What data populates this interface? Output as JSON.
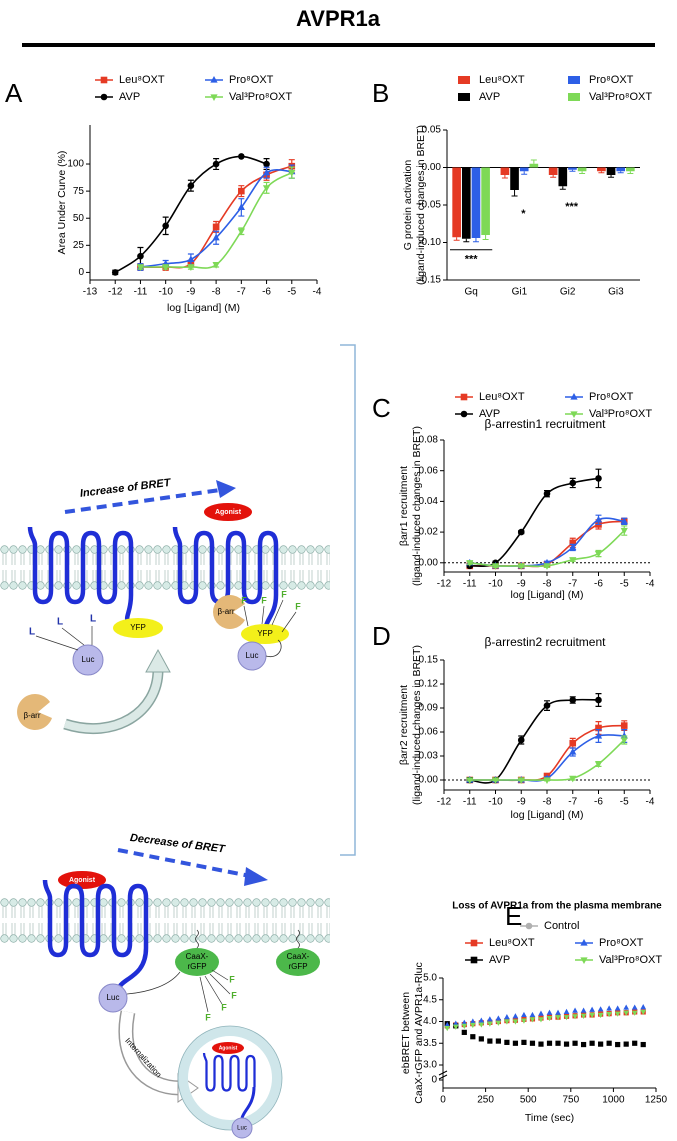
{
  "title": "AVPR1a",
  "chart_data": [
    {
      "panel": "A",
      "type": "line",
      "curve": "smooth",
      "xlabel": "log [Ligand] (M)",
      "ylabel": [
        "Area Under Curve (%)"
      ],
      "x": [
        -12,
        -11,
        -10,
        -9,
        -8,
        -7,
        -6,
        -5
      ],
      "xlim": [
        -13,
        -4
      ],
      "xticks": [
        -13,
        -12,
        -11,
        -10,
        -9,
        -8,
        -7,
        -6,
        -5,
        -4
      ],
      "ylim": [
        -7,
        136
      ],
      "yticks": [
        0,
        25,
        50,
        75,
        100
      ],
      "series": [
        {
          "name": "Leu⁸OXT",
          "color": "#e53a24",
          "marker": "square",
          "values": [
            null,
            5,
            5,
            8,
            42,
            75,
            90,
            98
          ],
          "errors": [
            null,
            3,
            3,
            3,
            5,
            5,
            5,
            6
          ]
        },
        {
          "name": "AVP",
          "color": "#000000",
          "marker": "circle",
          "values": [
            0,
            15,
            43,
            80,
            100,
            107,
            100,
            null
          ],
          "errors": [
            2,
            8,
            8,
            5,
            5,
            0,
            5,
            null
          ]
        },
        {
          "name": "Pro⁸OXT",
          "color": "#2d5fe6",
          "marker": "triangle",
          "values": [
            null,
            5,
            8,
            12,
            32,
            60,
            92,
            93
          ],
          "errors": [
            null,
            3,
            3,
            5,
            6,
            8,
            5,
            6
          ]
        },
        {
          "name": "Val³Pro⁸OXT",
          "color": "#7ed957",
          "marker": "triangle-down",
          "values": [
            null,
            5,
            5,
            5,
            7,
            38,
            78,
            92
          ],
          "errors": [
            null,
            2,
            2,
            2,
            2,
            3,
            5,
            5
          ]
        }
      ]
    },
    {
      "panel": "B",
      "type": "bar",
      "ylabel": [
        "G protein activation",
        "(ligand-induced changes in BRET)"
      ],
      "categories": [
        "Gq",
        "Gi1",
        "Gi2",
        "Gi3"
      ],
      "ylim": [
        -0.15,
        0.05
      ],
      "yticks": [
        {
          "value": 0.05,
          "label": "0.05"
        },
        {
          "value": 0,
          "label": "0.00"
        },
        {
          "value": -0.05,
          "label": "-0.05"
        },
        {
          "value": -0.1,
          "label": "-0.10"
        },
        {
          "value": -0.15,
          "label": "-0.15"
        }
      ],
      "series": [
        {
          "name": "Leu⁸OXT",
          "color": "#e53a24",
          "values": [
            -0.093,
            -0.01,
            -0.01,
            -0.005
          ],
          "errors": [
            0.004,
            0.004,
            0.003,
            0.002
          ]
        },
        {
          "name": "AVP",
          "color": "#000000",
          "values": [
            -0.095,
            -0.03,
            -0.025,
            -0.01
          ],
          "errors": [
            0.004,
            0.008,
            0.004,
            0.003
          ]
        },
        {
          "name": "Pro⁸OXT",
          "color": "#2d5fe6",
          "values": [
            -0.094,
            -0.005,
            -0.003,
            -0.005
          ],
          "errors": [
            0.005,
            0.004,
            0.002,
            0.002
          ]
        },
        {
          "name": "Val³Pro⁸OXT",
          "color": "#7ed957",
          "values": [
            -0.09,
            0.005,
            -0.005,
            -0.005
          ],
          "errors": [
            0.006,
            0.005,
            0.003,
            0.003
          ]
        }
      ],
      "annotations": [
        {
          "text": "***",
          "category": 0
        },
        {
          "text": "*",
          "category": 1
        },
        {
          "text": "***",
          "category": 2
        }
      ]
    },
    {
      "panel": "C",
      "type": "line",
      "curve": "smooth",
      "title": "β-arrestin1 recruitment",
      "xlabel": "log [Ligand] (M)",
      "ylabel": [
        "βarr1 recruitment",
        "(ligand-induced changes in BRET)"
      ],
      "zero_line": true,
      "x": [
        -11,
        -10,
        -9,
        -8,
        -7,
        -6,
        -5
      ],
      "xlim": [
        -12,
        -4
      ],
      "xticks": [
        -12,
        -11,
        -10,
        -9,
        -8,
        -7,
        -6,
        -5,
        -4
      ],
      "ylim": [
        -0.006,
        0.08
      ],
      "yticks": [
        {
          "value": 0,
          "label": "0.00"
        },
        {
          "value": 0.02,
          "label": "0.02"
        },
        {
          "value": 0.04,
          "label": "0.04"
        },
        {
          "value": 0.06,
          "label": "0.06"
        },
        {
          "value": 0.08,
          "label": "0.08"
        }
      ],
      "series": [
        {
          "name": "Leu⁸OXT",
          "color": "#e53a24",
          "marker": "square",
          "values": [
            -0.002,
            -0.002,
            -0.002,
            -0.001,
            0.013,
            0.025,
            0.027
          ],
          "errors": [
            0.001,
            0.001,
            0.001,
            0.001,
            0.003,
            0.003,
            0.002
          ]
        },
        {
          "name": "AVP",
          "color": "#000000",
          "marker": "circle",
          "values": [
            -0.002,
            0,
            0.02,
            0.045,
            0.052,
            0.055,
            null
          ],
          "errors": [
            0.001,
            0.001,
            0.001,
            0.002,
            0.003,
            0.006,
            null
          ]
        },
        {
          "name": "Pro⁸OXT",
          "color": "#2d5fe6",
          "marker": "triangle",
          "values": [
            0,
            -0.002,
            -0.002,
            0,
            0.01,
            0.028,
            0.027
          ],
          "errors": [
            0.001,
            0.001,
            0.001,
            0.001,
            0.002,
            0.003,
            0.002
          ]
        },
        {
          "name": "Val³Pro⁸OXT",
          "color": "#7ed957",
          "marker": "triangle-down",
          "values": [
            0,
            -0.002,
            -0.002,
            -0.002,
            0.002,
            0.006,
            0.021
          ],
          "errors": [
            0.001,
            0.001,
            0.001,
            0.001,
            0.001,
            0.002,
            0.003
          ]
        }
      ]
    },
    {
      "panel": "D",
      "type": "line",
      "curve": "smooth",
      "title": "β-arrestin2 recruitment",
      "xlabel": "log [Ligand] (M)",
      "ylabel": [
        "βarr2 recruitment",
        "(ligand-induced changes in BRET)"
      ],
      "zero_line": true,
      "legend": false,
      "x": [
        -11,
        -10,
        -9,
        -8,
        -7,
        -6,
        -5
      ],
      "xlim": [
        -12,
        -4
      ],
      "xticks": [
        -12,
        -11,
        -10,
        -9,
        -8,
        -7,
        -6,
        -5,
        -4
      ],
      "ylim": [
        -0.0125,
        0.15
      ],
      "yticks": [
        {
          "value": 0,
          "label": "0.00"
        },
        {
          "value": 0.03,
          "label": "0.03"
        },
        {
          "value": 0.06,
          "label": "0.06"
        },
        {
          "value": 0.09,
          "label": "0.09"
        },
        {
          "value": 0.12,
          "label": "0.12"
        },
        {
          "value": 0.15,
          "label": "0.15"
        }
      ],
      "series": [
        {
          "name": "Leu⁸OXT",
          "color": "#e53a24",
          "marker": "square",
          "values": [
            0,
            0,
            0,
            0.005,
            0.046,
            0.065,
            0.068
          ],
          "errors": [
            0.002,
            0.002,
            0.002,
            0.002,
            0.006,
            0.008,
            0.006
          ]
        },
        {
          "name": "AVP",
          "color": "#000000",
          "marker": "circle",
          "values": [
            0,
            0,
            0.05,
            0.093,
            0.1,
            0.1,
            null
          ],
          "errors": [
            0.003,
            0.002,
            0.005,
            0.006,
            0.004,
            0.008,
            null
          ]
        },
        {
          "name": "Pro⁸OXT",
          "color": "#2d5fe6",
          "marker": "triangle",
          "values": [
            0,
            0,
            0,
            0.002,
            0.035,
            0.055,
            0.055
          ],
          "errors": [
            0.002,
            0.002,
            0.002,
            0.002,
            0.005,
            0.008,
            0.008
          ]
        },
        {
          "name": "Val³Pro⁸OXT",
          "color": "#7ed957",
          "marker": "triangle-down",
          "values": [
            0,
            0,
            0,
            0,
            0.002,
            0.02,
            0.05
          ],
          "errors": [
            0.001,
            0.001,
            0.001,
            0.001,
            0.002,
            0.003,
            0.005
          ]
        }
      ]
    },
    {
      "panel": "E",
      "type": "scatter",
      "title": "Loss of AVPR1a from the plasma membrane",
      "xlabel": "Time (sec)",
      "ylabel": [
        "ebBRET between",
        "CaaX-rGFP and AVPR1a-Rluc"
      ],
      "x": [
        25,
        75,
        125,
        175,
        225,
        275,
        325,
        375,
        425,
        475,
        525,
        575,
        625,
        675,
        725,
        775,
        825,
        875,
        925,
        975,
        1025,
        1075,
        1125,
        1175
      ],
      "xlim": [
        0,
        1250
      ],
      "xticks": [
        0,
        250,
        500,
        750,
        1000,
        1250
      ],
      "ylim": [
        3,
        5
      ],
      "yticks": [
        {
          "value": 3,
          "label": "3.0"
        },
        {
          "value": 3.5,
          "label": "3.5"
        },
        {
          "value": 4,
          "label": "4.0"
        },
        {
          "value": 4.5,
          "label": "4.5"
        },
        {
          "value": 5,
          "label": "5.0"
        }
      ],
      "y_break_tick": 0,
      "series": [
        {
          "name": "Control",
          "color": "#b0b0b0",
          "marker": "circle",
          "values": [
            3.88,
            3.9,
            3.92,
            3.95,
            3.97,
            4.0,
            4.0,
            4.02,
            4.05,
            4.05,
            4.08,
            4.1,
            4.1,
            4.12,
            4.12,
            4.15,
            4.15,
            4.18,
            4.2,
            4.2,
            4.22,
            4.22,
            4.25,
            4.25
          ]
        },
        {
          "name": "Leu⁸OXT",
          "color": "#e53a24",
          "marker": "square",
          "values": [
            3.9,
            3.92,
            3.93,
            3.95,
            3.97,
            3.98,
            4.0,
            4.02,
            4.03,
            4.05,
            4.06,
            4.08,
            4.1,
            4.1,
            4.12,
            4.13,
            4.15,
            4.15,
            4.17,
            4.18,
            4.2,
            4.2,
            4.22,
            4.22
          ]
        },
        {
          "name": "AVP",
          "color": "#000000",
          "marker": "square",
          "values": [
            3.95,
            3.9,
            3.75,
            3.65,
            3.6,
            3.55,
            3.55,
            3.52,
            3.5,
            3.52,
            3.5,
            3.48,
            3.5,
            3.5,
            3.48,
            3.5,
            3.47,
            3.5,
            3.48,
            3.5,
            3.47,
            3.48,
            3.5,
            3.47
          ]
        },
        {
          "name": "Pro⁸OXT",
          "color": "#2d5fe6",
          "marker": "triangle",
          "values": [
            3.92,
            3.95,
            3.97,
            4.0,
            4.02,
            4.05,
            4.07,
            4.1,
            4.12,
            4.15,
            4.15,
            4.18,
            4.2,
            4.2,
            4.22,
            4.25,
            4.25,
            4.27,
            4.28,
            4.3,
            4.3,
            4.32,
            4.32,
            4.33
          ]
        },
        {
          "name": "Val³Pro⁸OXT",
          "color": "#7ed957",
          "marker": "triangle-down",
          "values": [
            3.85,
            3.88,
            3.9,
            3.92,
            3.93,
            3.95,
            3.97,
            4.0,
            4.0,
            4.02,
            4.05,
            4.05,
            4.08,
            4.1,
            4.1,
            4.12,
            4.13,
            4.15,
            4.15,
            4.17,
            4.18,
            4.2,
            4.2,
            4.22
          ]
        }
      ]
    }
  ],
  "diagrams": {
    "increase": {
      "label": "Increase of BRET",
      "agonist": "Agonist",
      "yfp": "YFP",
      "luc": "Luc",
      "barr": "β-arr",
      "ligand": "L",
      "fluorescence": "F"
    },
    "decrease": {
      "label": "Decrease of BRET",
      "agonist": "Agonist",
      "caax": [
        "CaaX-",
        "rGFP"
      ],
      "fluorescence": "F",
      "luc": "Luc",
      "internalization": "Internalization"
    }
  }
}
